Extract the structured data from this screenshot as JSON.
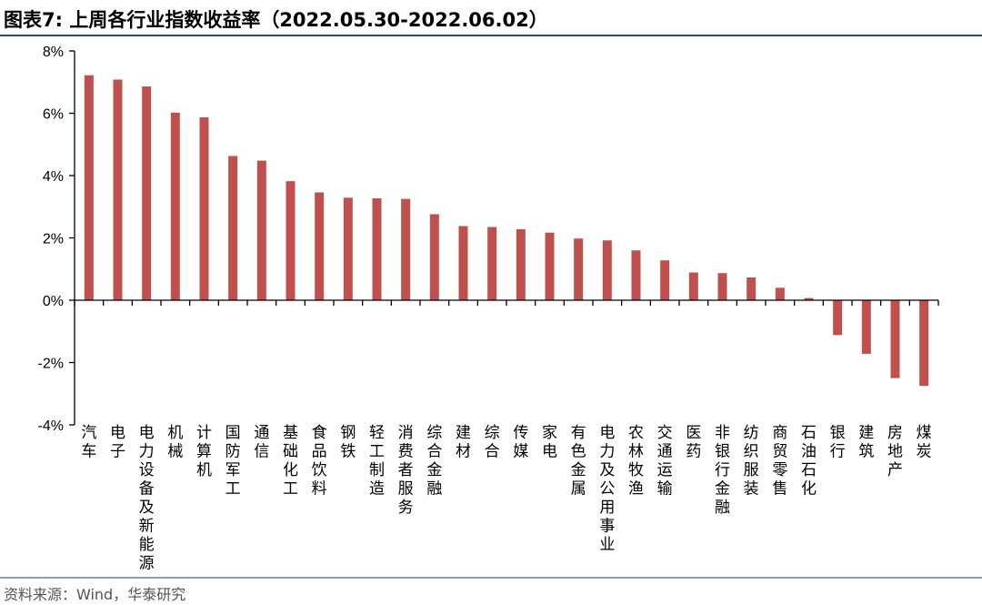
{
  "header": {
    "title": "图表7:   上周各行业指数收益率（2022.05.30-2022.06.02）"
  },
  "footer": {
    "source": "资料来源：Wind，华泰研究"
  },
  "colors": {
    "bar": "#c0504d",
    "axis": "#000000",
    "header_rule": "#2c4e7a",
    "footer_rule": "#8aa0bd"
  },
  "chart_data": {
    "type": "bar",
    "title": "",
    "xlabel": "",
    "ylabel": "",
    "ylim": [
      -4,
      8
    ],
    "yticks": [
      -4,
      -2,
      0,
      2,
      4,
      6,
      8
    ],
    "ytick_labels": [
      "-4%",
      "-2%",
      "0%",
      "2%",
      "4%",
      "6%",
      "8%"
    ],
    "grid": false,
    "legend": "none",
    "categories": [
      "汽车",
      "电子",
      "电力设备及新能源",
      "机械",
      "计算机",
      "国防军工",
      "通信",
      "基础化工",
      "食品饮料",
      "钢铁",
      "轻工制造",
      "消费者服务",
      "综合金融",
      "建材",
      "综合",
      "传媒",
      "家电",
      "有色金属",
      "电力及公用事业",
      "农林牧渔",
      "交通运输",
      "医药",
      "非银行金融",
      "纺织服装",
      "商贸零售",
      "石油石化",
      "银行",
      "建筑",
      "房地产",
      "煤炭"
    ],
    "values": [
      7.22,
      7.08,
      6.86,
      6.02,
      5.87,
      4.63,
      4.48,
      3.82,
      3.46,
      3.29,
      3.27,
      3.25,
      2.76,
      2.38,
      2.35,
      2.28,
      2.17,
      1.98,
      1.92,
      1.6,
      1.28,
      0.89,
      0.87,
      0.73,
      0.4,
      0.07,
      -1.12,
      -1.72,
      -2.5,
      -2.75
    ]
  }
}
